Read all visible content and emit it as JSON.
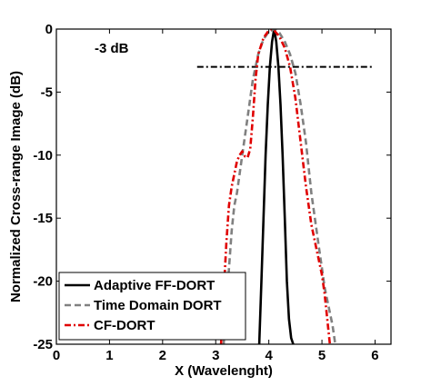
{
  "chart_data": {
    "type": "line",
    "title": "",
    "xlabel": "X (Wavelenght)",
    "ylabel": "Normalized Cross-range Image (dB)",
    "xlim": [
      0,
      6.3
    ],
    "ylim": [
      -25,
      0
    ],
    "xticks": [
      0,
      1,
      2,
      3,
      4,
      5,
      6
    ],
    "yticks": [
      0,
      -5,
      -10,
      -15,
      -20,
      -25
    ],
    "grid": false,
    "legend_position": "bottom-left",
    "annotation": {
      "text": "-3 dB"
    },
    "threshold": {
      "y": -3,
      "x": [
        2.65,
        5.95
      ]
    },
    "series": [
      {
        "name": "Adaptive FF-DORT",
        "color": "#000000",
        "style": "solid",
        "x": [
          3.82,
          3.86,
          3.9,
          3.94,
          3.98,
          4.02,
          4.06,
          4.1,
          4.14,
          4.18,
          4.22,
          4.26,
          4.3,
          4.34,
          4.38,
          4.42,
          4.46
        ],
        "y": [
          -25,
          -20,
          -15,
          -10,
          -6,
          -3,
          -1,
          0,
          -1,
          -3,
          -6,
          -10,
          -15,
          -20,
          -23,
          -24.5,
          -25
        ]
      },
      {
        "name": "Time Domain DORT",
        "color": "#808080",
        "style": "dashed",
        "x": [
          3.15,
          3.2,
          3.25,
          3.3,
          3.35,
          3.4,
          3.5,
          3.6,
          3.7,
          3.8,
          3.9,
          4.0,
          4.1,
          4.2,
          4.3,
          4.4,
          4.5,
          4.6,
          4.7,
          4.8,
          4.9,
          4.95,
          5.0,
          5.05,
          5.1,
          5.15,
          5.2,
          5.25
        ],
        "y": [
          -25,
          -22,
          -19,
          -16,
          -14,
          -13,
          -10,
          -7,
          -4,
          -2,
          -0.8,
          -0.2,
          0,
          -0.3,
          -1,
          -2,
          -3.5,
          -6,
          -9,
          -13,
          -16,
          -17.5,
          -19,
          -20.5,
          -21.5,
          -22.5,
          -23.5,
          -25
        ]
      },
      {
        "name": "CF-DORT",
        "color": "#e00000",
        "style": "dashdot",
        "x": [
          3.1,
          3.15,
          3.2,
          3.25,
          3.3,
          3.35,
          3.4,
          3.45,
          3.5,
          3.55,
          3.6,
          3.65,
          3.7,
          3.75,
          3.8,
          3.9,
          4.0,
          4.05,
          4.1,
          4.2,
          4.3,
          4.4,
          4.5,
          4.6,
          4.7,
          4.8,
          4.9,
          5.0,
          5.05,
          5.1,
          5.15
        ],
        "y": [
          -25,
          -21,
          -17,
          -14,
          -12.5,
          -11.5,
          -10.5,
          -10,
          -9.7,
          -10.1,
          -10.2,
          -9.5,
          -7,
          -4,
          -2,
          -0.7,
          -0.1,
          0,
          -0.1,
          -0.6,
          -1.5,
          -3,
          -5.5,
          -9,
          -12.5,
          -15.5,
          -17.5,
          -19.5,
          -21,
          -23,
          -25
        ]
      }
    ]
  }
}
